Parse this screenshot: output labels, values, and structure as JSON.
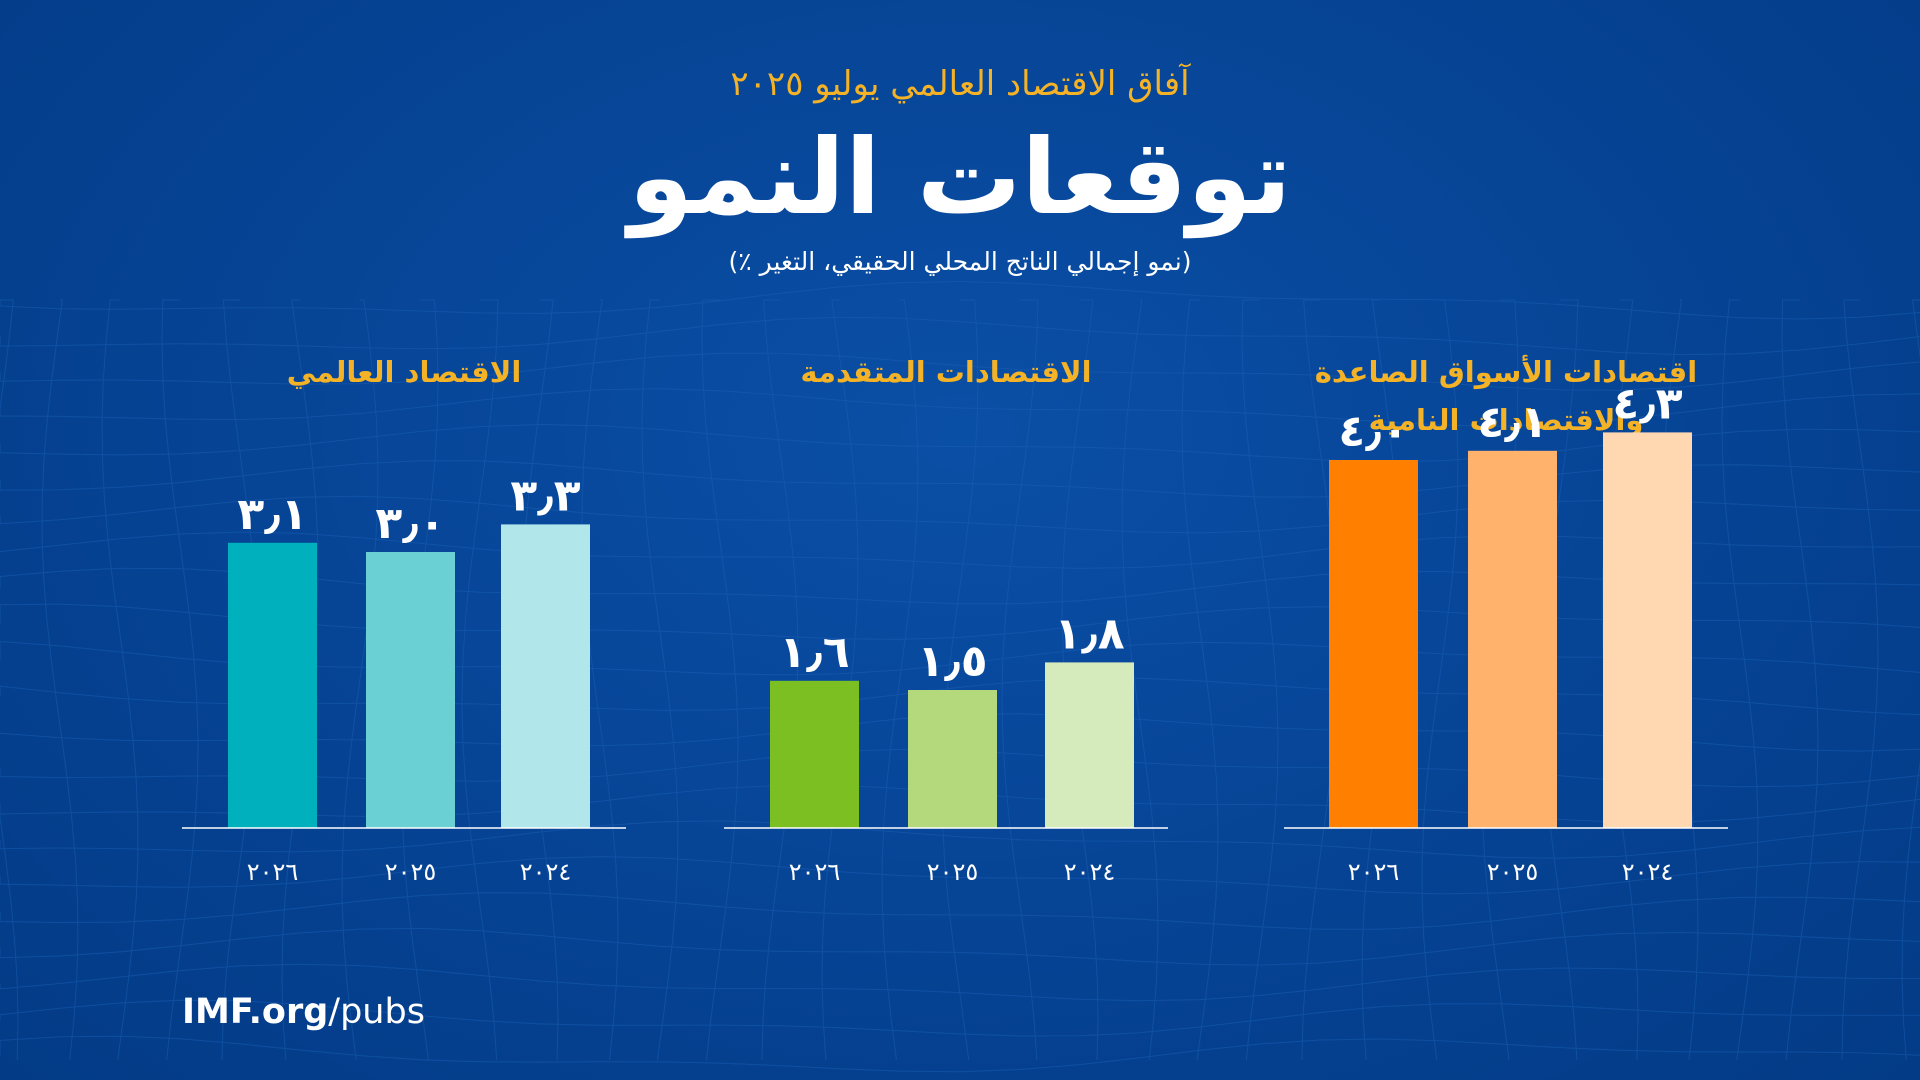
{
  "header": {
    "subtitle": "آفاق الاقتصاد العالمي يوليو ٢٠٢٥",
    "title": "توقعات النمو",
    "unit_note": "(نمو إجمالي الناتج المحلي الحقيقي، التغير ٪)"
  },
  "footer": {
    "site": "IMF.org",
    "path": "/pubs"
  },
  "colors": {
    "background": "#064394",
    "accent": "#f4b227",
    "world": [
      "#00b1bd",
      "#6ad0d3",
      "#b1e6ea"
    ],
    "advanced": [
      "#7cbf22",
      "#b3d97c",
      "#d6ebbb"
    ],
    "emerging": [
      "#ff8000",
      "#ffb26b",
      "#ffd8b1"
    ]
  },
  "chart_data": [
    {
      "type": "bar",
      "title": "الاقتصاد العالمي",
      "categories": [
        "٢٠٢٦",
        "٢٠٢٥",
        "٢٠٢٤"
      ],
      "values": [
        3.1,
        3.0,
        3.3
      ],
      "value_labels": [
        "٣٫١",
        "٣٫٠",
        "٣٫٣"
      ],
      "ylim": [
        0,
        5
      ]
    },
    {
      "type": "bar",
      "title": "الاقتصادات المتقدمة",
      "categories": [
        "٢٠٢٦",
        "٢٠٢٥",
        "٢٠٢٤"
      ],
      "values": [
        1.6,
        1.5,
        1.8
      ],
      "value_labels": [
        "١٫٦",
        "١٫٥",
        "١٫٨"
      ],
      "ylim": [
        0,
        5
      ]
    },
    {
      "type": "bar",
      "title": [
        "اقتصادات الأسواق الصاعدة",
        "والاقتصادات النامية"
      ],
      "categories": [
        "٢٠٢٦",
        "٢٠٢٥",
        "٢٠٢٤"
      ],
      "values": [
        4.0,
        4.1,
        4.3
      ],
      "value_labels": [
        "٤٫٠",
        "٤٫١",
        "٤٫٣"
      ],
      "ylim": [
        0,
        5
      ]
    }
  ]
}
